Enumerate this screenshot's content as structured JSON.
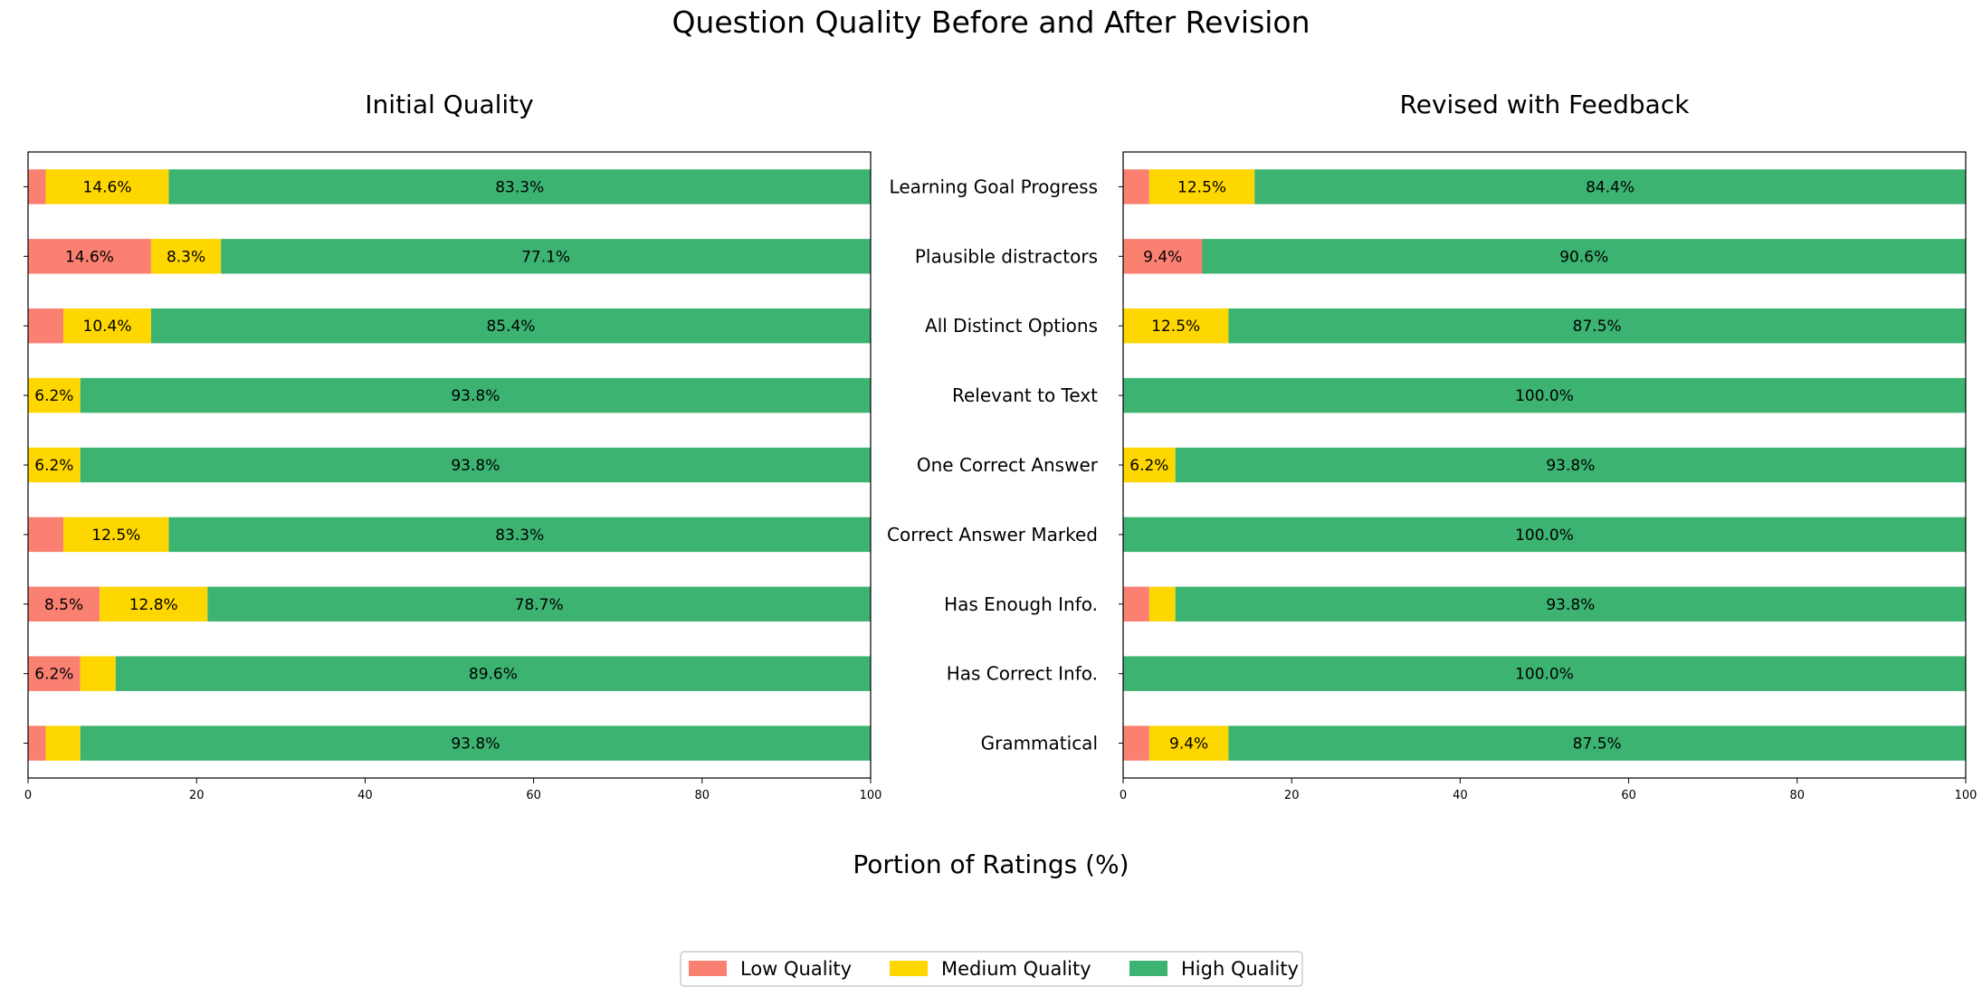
{
  "figure": {
    "title": "Question Quality Before and After Revision",
    "xlabel": "Portion of Ratings (%)"
  },
  "legend": {
    "items": [
      {
        "label": "Low Quality",
        "color": "#FA8072"
      },
      {
        "label": "Medium Quality",
        "color": "#FFD700"
      },
      {
        "label": "High Quality",
        "color": "#3CB371"
      }
    ]
  },
  "chart_data": [
    {
      "type": "bar",
      "orientation": "horizontal",
      "stacked": true,
      "title": "Initial Quality",
      "categories": [
        "Learning Goal Progress",
        "Plausible distractors",
        "All Distinct Options",
        "Relevant to Text",
        "One Correct Answer",
        "Correct Answer Marked",
        "Has Enough Info.",
        "Has Correct Info.",
        "Grammatical"
      ],
      "series": [
        {
          "name": "Low Quality",
          "values": [
            2.1,
            14.6,
            4.2,
            0,
            0,
            4.2,
            8.5,
            6.2,
            2.1
          ]
        },
        {
          "name": "Medium Quality",
          "values": [
            14.6,
            8.3,
            10.4,
            6.2,
            6.2,
            12.5,
            12.8,
            4.2,
            4.1
          ]
        },
        {
          "name": "High Quality",
          "values": [
            83.3,
            77.1,
            85.4,
            93.8,
            93.8,
            83.3,
            78.7,
            89.6,
            93.8
          ]
        }
      ],
      "data_labels": [
        [
          "",
          "14.6%",
          "83.3%"
        ],
        [
          "14.6%",
          "8.3%",
          "77.1%"
        ],
        [
          "",
          "10.4%",
          "85.4%"
        ],
        [
          "",
          "6.2%",
          "93.8%"
        ],
        [
          "",
          "6.2%",
          "93.8%"
        ],
        [
          "",
          "12.5%",
          "83.3%"
        ],
        [
          "8.5%",
          "12.8%",
          "78.7%"
        ],
        [
          "6.2%",
          "",
          "89.6%"
        ],
        [
          "",
          "",
          "93.8%"
        ]
      ],
      "xlim": [
        0,
        100
      ],
      "xticks": [
        "0",
        "20",
        "40",
        "60",
        "80",
        "100"
      ],
      "show_category_labels": false
    },
    {
      "type": "bar",
      "orientation": "horizontal",
      "stacked": true,
      "title": "Revised with Feedback",
      "categories": [
        "Learning Goal Progress",
        "Plausible distractors",
        "All Distinct Options",
        "Relevant to Text",
        "One Correct Answer",
        "Correct Answer Marked",
        "Has Enough Info.",
        "Has Correct Info.",
        "Grammatical"
      ],
      "series": [
        {
          "name": "Low Quality",
          "values": [
            3.1,
            9.4,
            0,
            0,
            0,
            0,
            3.1,
            0,
            3.1
          ]
        },
        {
          "name": "Medium Quality",
          "values": [
            12.5,
            0,
            12.5,
            0,
            6.2,
            0,
            3.1,
            0,
            9.4
          ]
        },
        {
          "name": "High Quality",
          "values": [
            84.4,
            90.6,
            87.5,
            100.0,
            93.8,
            100.0,
            93.8,
            100.0,
            87.5
          ]
        }
      ],
      "data_labels": [
        [
          "",
          "12.5%",
          "84.4%"
        ],
        [
          "9.4%",
          "",
          "90.6%"
        ],
        [
          "",
          "12.5%",
          "87.5%"
        ],
        [
          "",
          "",
          "100.0%"
        ],
        [
          "",
          "6.2%",
          "93.8%"
        ],
        [
          "",
          "",
          "100.0%"
        ],
        [
          "",
          "",
          "93.8%"
        ],
        [
          "",
          "",
          "100.0%"
        ],
        [
          "",
          "9.4%",
          "87.5%"
        ]
      ],
      "xlim": [
        0,
        100
      ],
      "xticks": [
        "0",
        "20",
        "40",
        "60",
        "80",
        "100"
      ],
      "show_category_labels": true
    }
  ]
}
